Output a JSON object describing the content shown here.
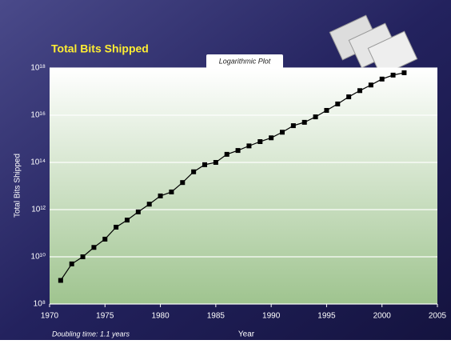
{
  "chart_data": {
    "type": "line",
    "title": "Total Bits Shipped",
    "subtitle": "Logarithmic Plot",
    "y_label": "Total Bits Shipped",
    "x_label": "Year",
    "annotation": "Doubling time: 1.1 years",
    "x": [
      1971,
      1972,
      1973,
      1974,
      1975,
      1976,
      1977,
      1978,
      1979,
      1980,
      1981,
      1982,
      1983,
      1984,
      1985,
      1986,
      1987,
      1988,
      1989,
      1990,
      1991,
      1992,
      1993,
      1994,
      1995,
      1996,
      1997,
      1998,
      1999,
      2000,
      2001,
      2002
    ],
    "values": [
      1000000000.0,
      5000000000.0,
      10000000000.0,
      25000000000.0,
      56000000000.0,
      180000000000.0,
      360000000000.0,
      800000000000.0,
      1700000000000.0,
      3800000000000.0,
      5600000000000.0,
      14000000000000.0,
      40000000000000.0,
      80000000000000.0,
      100000000000000.0,
      220000000000000.0,
      320000000000000.0,
      500000000000000.0,
      760000000000000.0,
      1100000000000000.0,
      1900000000000000.0,
      3600000000000000.0,
      5000000000000000.0,
      8500000000000000.0,
      1.6e+16,
      3e+16,
      6e+16,
      1.1e+17,
      1.9e+17,
      3.4e+17,
      5e+17,
      6.3e+17
    ],
    "color": "#000000",
    "xlim": [
      1970,
      2005
    ],
    "xticks": [
      1970,
      1975,
      1980,
      1985,
      1990,
      1995,
      2000,
      2005
    ],
    "ylim": [
      100000000.0,
      1e+18
    ],
    "yticks": [
      {
        "value": 100000000.0,
        "label": "10⁸"
      },
      {
        "value": 10000000000.0,
        "label": "10¹⁰"
      },
      {
        "value": 1000000000000.0,
        "label": "10¹²"
      },
      {
        "value": 100000000000000.0,
        "label": "10¹⁴"
      },
      {
        "value": 1e+16,
        "label": "10¹⁶"
      },
      {
        "value": 1e+18,
        "label": "10¹⁸"
      }
    ],
    "log_y": true,
    "grid": true
  }
}
